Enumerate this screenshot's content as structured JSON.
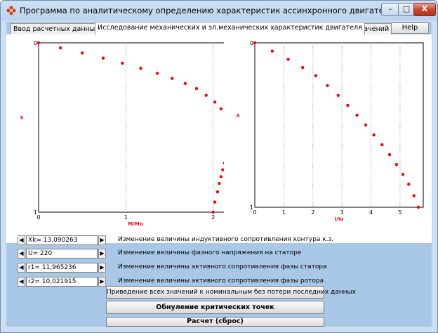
{
  "window": {
    "title": "Программа по аналитическому определению характеристик ассинхронного двигателя",
    "minimize_symbol": "–",
    "maximize_symbol": "□",
    "close_symbol": "X"
  },
  "tabs": [
    {
      "label": "Ввод расчетных данных",
      "active": false
    },
    {
      "label": "Исследование механических и эл.механических характеристик двигателя",
      "active": true
    },
    {
      "label": "Таблица значений",
      "active": false
    }
  ],
  "help_label": "Help",
  "chart_data": [
    {
      "type": "scatter",
      "title": "",
      "xlabel": "M/Mo",
      "ylabel": "s",
      "xlim": [
        0,
        2.22
      ],
      "ylim": [
        0,
        1
      ],
      "y_inverted": true,
      "x_ticks": [
        "0",
        "1",
        "2"
      ],
      "y_ticks": [
        "0",
        "1"
      ],
      "grid": "vertical dotted",
      "color": "#ff0000",
      "x": [
        0.0,
        0.25,
        0.5,
        0.74,
        0.96,
        1.17,
        1.36,
        1.53,
        1.68,
        1.81,
        1.92,
        2.02,
        2.09,
        2.14,
        2.17,
        2.18,
        2.18,
        2.17,
        2.16,
        2.15,
        2.13,
        2.11,
        2.09,
        2.07,
        2.05,
        2.02,
        2.0
      ],
      "y": [
        0.0,
        0.03,
        0.06,
        0.09,
        0.12,
        0.15,
        0.18,
        0.21,
        0.24,
        0.27,
        0.31,
        0.35,
        0.39,
        0.43,
        0.47,
        0.51,
        0.55,
        0.59,
        0.63,
        0.67,
        0.71,
        0.75,
        0.79,
        0.83,
        0.88,
        0.94,
        1.0
      ]
    },
    {
      "type": "scatter",
      "title": "",
      "xlabel": "I/Io",
      "ylabel": "s",
      "xlim": [
        0,
        5.8
      ],
      "ylim": [
        0,
        1
      ],
      "y_inverted": true,
      "x_ticks": [
        "0",
        "1",
        "2",
        "3",
        "4",
        "5"
      ],
      "y_ticks": [
        "0",
        "1"
      ],
      "grid": "vertical dotted",
      "color": "#ff0000",
      "x": [
        0.0,
        0.6,
        1.15,
        1.65,
        2.1,
        2.5,
        2.87,
        3.2,
        3.52,
        3.82,
        4.1,
        4.38,
        4.64,
        4.88,
        5.1,
        5.3,
        5.48,
        5.63
      ],
      "y": [
        0.0,
        0.05,
        0.1,
        0.15,
        0.2,
        0.26,
        0.32,
        0.38,
        0.44,
        0.5,
        0.56,
        0.62,
        0.68,
        0.74,
        0.8,
        0.86,
        0.93,
        1.0
      ]
    }
  ],
  "controls": [
    {
      "value": "Xk= 13,090263",
      "label": "Изменение величины индуктивного сопротивления контура к.з."
    },
    {
      "value": "U= 220",
      "label": "Изменение величины фазного напряжения на статоре"
    },
    {
      "value": "r1= 11,965236",
      "label": "Изменение величины активного сопротивления фазы статора"
    },
    {
      "value": "r2= 10,021915",
      "label": "Изменение величины активного сопротивления фазы ротора"
    }
  ],
  "spin_left_symbol": "◀",
  "spin_right_symbol": "▶",
  "buttons": {
    "reset_nominal": "Приведение всех значений к номинальным без потери последних данных",
    "reset_critical": "Обнуление критических точек",
    "calculate": "Расчет (сброс)"
  },
  "colors": {
    "points": "#ff0000",
    "axis_label": "#ff0000"
  },
  "icons": {
    "app": "app-icon-red-flower"
  }
}
